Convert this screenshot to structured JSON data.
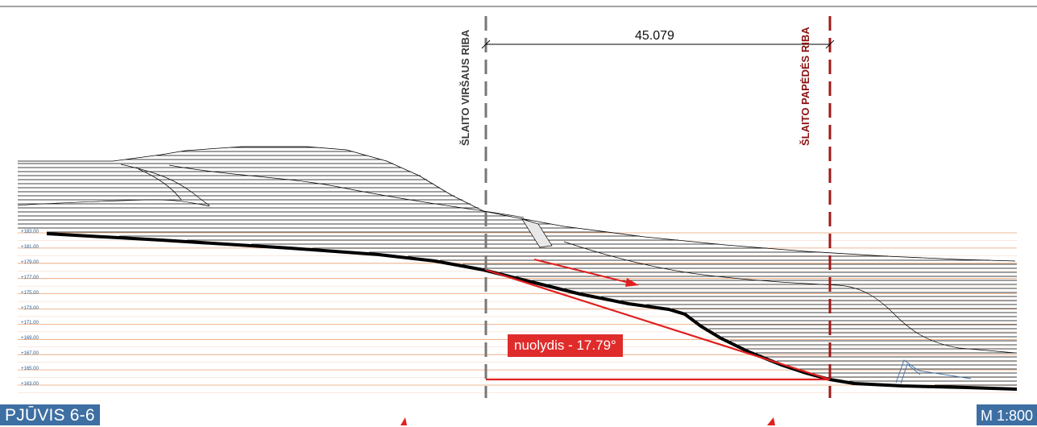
{
  "section_title": "PJŪVIS 6-6",
  "scale": "M 1:800",
  "labels": {
    "slope_top": "ŠLAITO VIRŠAUS RIBA",
    "slope_toe": "ŠLAITO PAPĖDĖS RIBA"
  },
  "dimension": "45.079",
  "slope_angle": "nuolydis - 17.79°",
  "elevations": [
    "+183.00",
    "+181.00",
    "+179.00",
    "+177.00",
    "+175.00",
    "+173.00",
    "+171.00",
    "+169.00",
    "+167.00",
    "+165.00",
    "+163.00"
  ],
  "colors": {
    "grid": "#e8a070",
    "ground": "#000000",
    "slope": "#e02020",
    "top_line": "#777777",
    "toe_line": "#a01818",
    "badge": "#3d6fa3"
  }
}
